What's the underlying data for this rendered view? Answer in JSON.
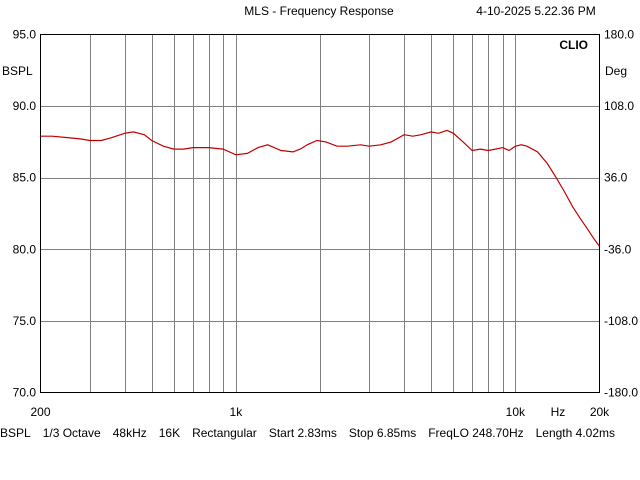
{
  "header": {
    "title": "MLS - Frequency Response",
    "timestamp": "4-10-2025 5.22.36 PM",
    "brand": "CLIO"
  },
  "axes": {
    "left_unit": "BSPL",
    "right_unit": "Deg",
    "left_ticks": [
      "95.0",
      "90.0",
      "85.0",
      "80.0",
      "75.0",
      "70.0"
    ],
    "right_ticks": [
      "180.0",
      "108.0",
      "36.0",
      "-36.0",
      "-108.0",
      "-180.0"
    ],
    "x_tick_labels": [
      {
        "f": 200,
        "label": "200"
      },
      {
        "f": 1000,
        "label": "1k"
      },
      {
        "f": 10000,
        "label": "10k"
      },
      {
        "f": 14200,
        "label": "Hz"
      },
      {
        "f": 20000,
        "label": "20k"
      }
    ]
  },
  "footer": {
    "items": [
      "BSPL",
      "1/3 Octave",
      "48kHz",
      "16K",
      "Rectangular",
      "Start 2.83ms",
      "Stop 6.85ms",
      "FreqLO 248.70Hz",
      "Length 4.02ms"
    ]
  },
  "colors": {
    "curve": "#c00000",
    "grid": "#808080",
    "background": "#ffffff"
  },
  "chart_data": {
    "type": "line",
    "title": "MLS - Frequency Response",
    "xlabel": "Hz",
    "ylabel": "BSPL",
    "y2label": "Deg",
    "xscale": "log",
    "xlim": [
      200,
      20000
    ],
    "ylim": [
      70,
      95
    ],
    "y2lim": [
      -180,
      180
    ],
    "grid": true,
    "series": [
      {
        "x": [
          200,
          220,
          250,
          280,
          300,
          330,
          360,
          400,
          430,
          470,
          500,
          550,
          600,
          650,
          700,
          800,
          900,
          1000,
          1100,
          1200,
          1300,
          1450,
          1600,
          1700,
          1800,
          1950,
          2100,
          2300,
          2500,
          2800,
          3000,
          3300,
          3600,
          4000,
          4300,
          4600,
          5000,
          5300,
          5700,
          6000,
          6500,
          7000,
          7500,
          8000,
          8500,
          9000,
          9500,
          10000,
          10500,
          11000,
          12000,
          13000,
          14000,
          15000,
          16000,
          17000,
          18000,
          19000,
          20000
        ],
        "y": [
          87.9,
          87.9,
          87.8,
          87.7,
          87.6,
          87.6,
          87.8,
          88.1,
          88.2,
          88.0,
          87.6,
          87.2,
          87.0,
          87.0,
          87.1,
          87.1,
          87.0,
          86.6,
          86.7,
          87.1,
          87.3,
          86.9,
          86.8,
          87.0,
          87.3,
          87.6,
          87.5,
          87.2,
          87.2,
          87.3,
          87.2,
          87.3,
          87.5,
          88.0,
          87.9,
          88.0,
          88.2,
          88.1,
          88.3,
          88.1,
          87.5,
          86.9,
          87.0,
          86.9,
          87.0,
          87.1,
          86.9,
          87.2,
          87.3,
          87.2,
          86.8,
          86.0,
          85.0,
          84.0,
          83.0,
          82.2,
          81.5,
          80.8,
          80.2
        ]
      }
    ]
  }
}
